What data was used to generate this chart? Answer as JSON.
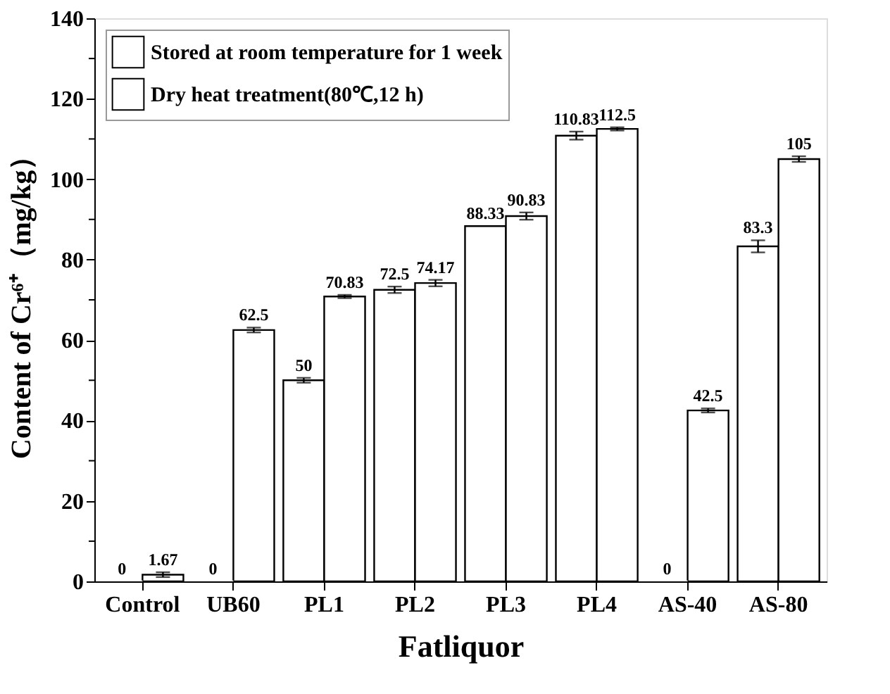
{
  "chart_data": {
    "type": "bar",
    "xlabel": "Fatliquor",
    "ylabel": "Content of Cr⁶⁺（mg/kg）",
    "categories": [
      "Control",
      "UB60",
      "PL1",
      "PL2",
      "PL3",
      "PL4",
      "AS-40",
      "AS-80"
    ],
    "series": [
      {
        "name": "Stored at room temperature for 1 week",
        "color": "#ffffff",
        "values": [
          0,
          0,
          50,
          72.5,
          88.33,
          110.83,
          0,
          83.3
        ],
        "errors": [
          null,
          null,
          0.6,
          0.8,
          null,
          1.0,
          null,
          1.5
        ]
      },
      {
        "name": "Dry heat treatment(80℃,12 h)",
        "color": "#ffffff",
        "values": [
          1.67,
          62.5,
          70.83,
          74.17,
          90.83,
          112.5,
          42.5,
          105
        ],
        "errors": [
          0.6,
          0.6,
          0.4,
          0.8,
          0.9,
          0.4,
          0.5,
          0.7
        ]
      }
    ],
    "ylim": [
      0,
      140
    ],
    "yticks": [
      0,
      {
        "value": 10,
        "label": null
      },
      20,
      {
        "value": 30,
        "label": null
      },
      40,
      {
        "value": 50,
        "label": null
      },
      60,
      {
        "value": 70,
        "label": null
      },
      80,
      {
        "value": 90,
        "label": null
      },
      100,
      {
        "value": 110,
        "label": null
      },
      120,
      {
        "value": 130,
        "label": null
      },
      140
    ],
    "data_labels": true,
    "legend": "top left",
    "grid": false
  }
}
